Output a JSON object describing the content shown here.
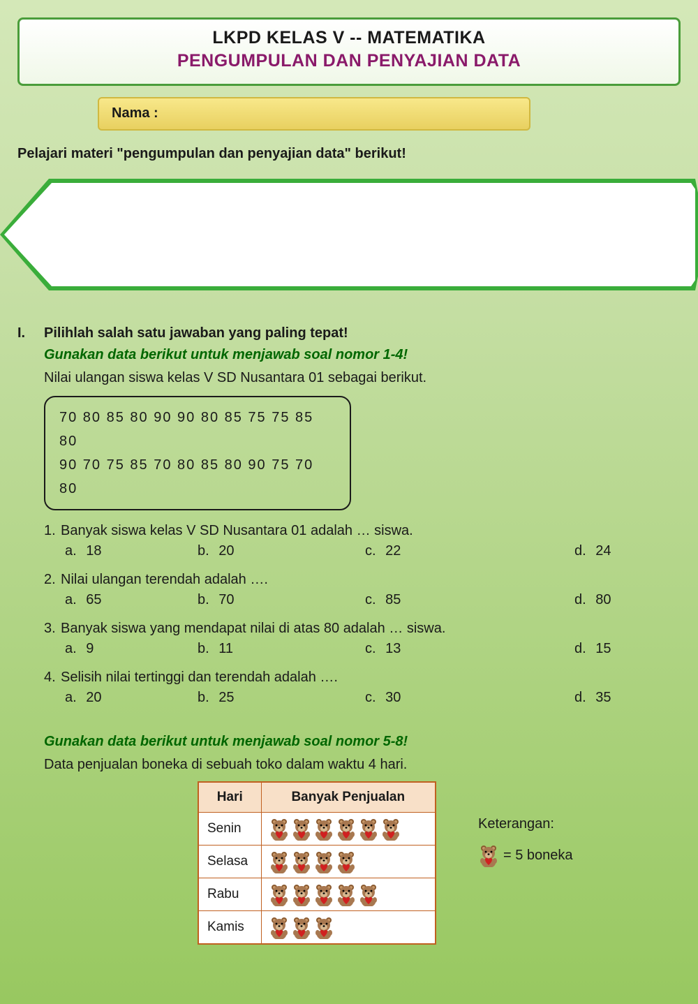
{
  "colors": {
    "bg_gradient_top": "#d4e8b8",
    "bg_gradient_bottom": "#98c860",
    "header_border": "#4a9d3a",
    "subtitle_color": "#8a1a6a",
    "name_box_bg_top": "#f8e88a",
    "name_box_bg_bottom": "#e8d060",
    "name_box_border": "#d0b840",
    "data_instruction_color": "#006600",
    "table_border": "#c06020",
    "table_header_bg": "#f8e0c8",
    "text_color": "#1a1a1a",
    "bear_body": "#a87850",
    "bear_heart": "#d02020"
  },
  "header": {
    "title": "LKPD KELAS V  -- MATEMATIKA",
    "subtitle": "PENGUMPULAN DAN PENYAJIAN DATA",
    "title_fontsize": 25,
    "subtitle_fontsize": 25
  },
  "name_label": "Nama :",
  "instruction": "Pelajari materi \"pengumpulan dan penyajian data\" berikut!",
  "section_i": {
    "number": "I.",
    "title": "Pilihlah salah satu jawaban yang paling tepat!",
    "data1": {
      "instruction": "Gunakan data berikut untuk menjawab soal nomor 1-4!",
      "description": "Nilai ulangan siswa kelas V SD Nusantara 01 sebagai berikut.",
      "row1": "70  80  85  80  90  90  80  85  75  75  85  80",
      "row2": "90  70  75  85  70  80  85  80  90  75  70  80"
    },
    "questions": [
      {
        "num": "1.",
        "text": "Banyak siswa kelas V SD Nusantara 01 adalah … siswa.",
        "a": "18",
        "b": "20",
        "c": "22",
        "d": "24"
      },
      {
        "num": "2.",
        "text": "Nilai ulangan terendah adalah ….",
        "a": "65",
        "b": "70",
        "c": "85",
        "d": "80"
      },
      {
        "num": "3.",
        "text": "Banyak siswa yang mendapat nilai di atas 80 adalah … siswa.",
        "a": "9",
        "b": "11",
        "c": "13",
        "d": "15"
      },
      {
        "num": "4.",
        "text": "Selisih nilai tertinggi dan terendah adalah ….",
        "a": "20",
        "b": "25",
        "c": "30",
        "d": "35"
      }
    ],
    "data2": {
      "instruction": "Gunakan data berikut untuk menjawab soal nomor 5-8!",
      "description": "Data penjualan boneka di sebuah toko dalam waktu  4 hari.",
      "table": {
        "columns": [
          "Hari",
          "Banyak Penjualan"
        ],
        "rows": [
          {
            "day": "Senin",
            "count": 6
          },
          {
            "day": "Selasa",
            "count": 4
          },
          {
            "day": "Rabu",
            "count": 5
          },
          {
            "day": "Kamis",
            "count": 3
          }
        ]
      },
      "legend_label": "Keterangan:",
      "legend_text": "= 5 boneka"
    }
  },
  "option_labels": {
    "a": "a.",
    "b": "b.",
    "c": "c.",
    "d": "d."
  }
}
